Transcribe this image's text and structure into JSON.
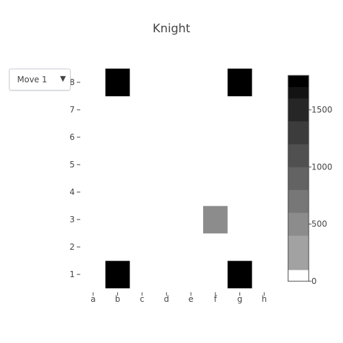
{
  "title": "Knight",
  "dropdown": {
    "selected": "Move 1"
  },
  "chart_data": {
    "type": "heatmap",
    "title": "Knight",
    "x": [
      "a",
      "b",
      "c",
      "d",
      "e",
      "f",
      "g",
      "h"
    ],
    "y": [
      "1",
      "2",
      "3",
      "4",
      "5",
      "6",
      "7",
      "8"
    ],
    "z": [
      [
        0,
        1800,
        0,
        0,
        0,
        0,
        1800,
        0
      ],
      [
        0,
        0,
        0,
        0,
        0,
        0,
        0,
        0
      ],
      [
        0,
        0,
        0,
        0,
        0,
        600,
        0,
        0
      ],
      [
        0,
        0,
        0,
        0,
        0,
        0,
        0,
        0
      ],
      [
        0,
        0,
        0,
        0,
        0,
        0,
        0,
        0
      ],
      [
        0,
        0,
        0,
        0,
        0,
        0,
        0,
        0
      ],
      [
        0,
        0,
        0,
        0,
        0,
        0,
        0,
        0
      ],
      [
        0,
        1800,
        0,
        0,
        0,
        0,
        1800,
        0
      ]
    ],
    "colorbar": {
      "zmin": 0,
      "zmax": 1800,
      "tickvals": [
        0,
        500,
        1000,
        1500
      ],
      "ticktext": [
        "0",
        "500",
        "1000",
        "1500"
      ],
      "levels": [
        {
          "from": 0,
          "to": 100,
          "color": "#ffffff"
        },
        {
          "from": 100,
          "to": 400,
          "color": "#a2a2a2"
        },
        {
          "from": 400,
          "to": 600,
          "color": "#8c8c8c"
        },
        {
          "from": 600,
          "to": 800,
          "color": "#777777"
        },
        {
          "from": 800,
          "to": 1000,
          "color": "#636363"
        },
        {
          "from": 1000,
          "to": 1200,
          "color": "#505050"
        },
        {
          "from": 1200,
          "to": 1400,
          "color": "#3c3c3c"
        },
        {
          "from": 1400,
          "to": 1600,
          "color": "#262626"
        },
        {
          "from": 1600,
          "to": 1700,
          "color": "#131313"
        },
        {
          "from": 1700,
          "to": 1800,
          "color": "#000000"
        }
      ]
    },
    "cell_colors": {
      "zero": "#ffffff",
      "low": "#a2a2a2",
      "high": "#000000"
    }
  }
}
